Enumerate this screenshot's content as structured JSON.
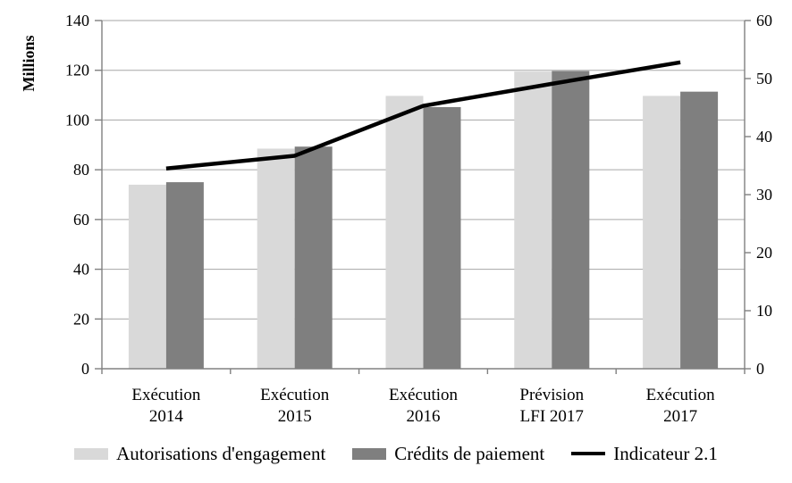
{
  "chart_data": {
    "type": "combo-bar-line",
    "title": "",
    "categories": [
      [
        "Exécution",
        "2014"
      ],
      [
        "Exécution",
        "2015"
      ],
      [
        "Exécution",
        "2016"
      ],
      [
        "Prévision",
        "LFI 2017"
      ],
      [
        "Exécution",
        "2017"
      ]
    ],
    "series": [
      {
        "name": "Autorisations d'engagement",
        "type": "bar",
        "axis": "left",
        "color": "#d9d9d9",
        "values": [
          74.0,
          88.5,
          109.7,
          119.5,
          109.7
        ]
      },
      {
        "name": "Crédits de paiement",
        "type": "bar",
        "axis": "left",
        "color": "#7f7f7f",
        "values": [
          75.0,
          89.3,
          105.2,
          119.7,
          111.4
        ]
      },
      {
        "name": "Indicateur 2.1",
        "type": "line",
        "axis": "right",
        "color": "#000000",
        "values": [
          34.5,
          36.7,
          45.3,
          49.1,
          52.8
        ]
      }
    ],
    "left_axis": {
      "title": "Millions",
      "min": 0,
      "max": 140,
      "step": 20
    },
    "right_axis": {
      "title": "",
      "min": 0,
      "max": 60,
      "step": 10
    },
    "grid": true,
    "legend_position": "bottom",
    "colors": {
      "gridline": "#a6a6a6",
      "axis": "#808080",
      "text": "#000000",
      "background": "#ffffff"
    }
  }
}
